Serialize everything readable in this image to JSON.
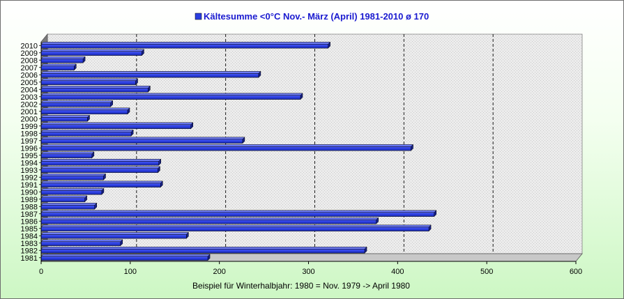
{
  "chart_data": {
    "type": "bar",
    "orientation": "horizontal",
    "title": "Kältesumme <0°C Nov.- März (April) 1981-2010  ø 170",
    "xlabel": "Beispiel für Winterhalbjahr: 1980 = Nov. 1979 -> April 1980",
    "ylabel": "",
    "xlim": [
      0,
      600
    ],
    "x_ticks": [
      0,
      100,
      200,
      300,
      400,
      500,
      600
    ],
    "grid": true,
    "legend": "top-center",
    "color": "#2b3ee0",
    "categories": [
      "1981",
      "1982",
      "1983",
      "1984",
      "1985",
      "1986",
      "1987",
      "1988",
      "1989",
      "1990",
      "1991",
      "1992",
      "1993",
      "1994",
      "1995",
      "1996",
      "1997",
      "1998",
      "1999",
      "2000",
      "2001",
      "2002",
      "2003",
      "2004",
      "2005",
      "2006",
      "2007",
      "2008",
      "2009",
      "2010"
    ],
    "values": [
      187,
      363,
      89,
      163,
      435,
      376,
      441,
      60,
      49,
      68,
      134,
      70,
      131,
      132,
      57,
      415,
      226,
      101,
      168,
      52,
      97,
      78,
      291,
      120,
      106,
      244,
      37,
      47,
      113,
      322
    ]
  }
}
